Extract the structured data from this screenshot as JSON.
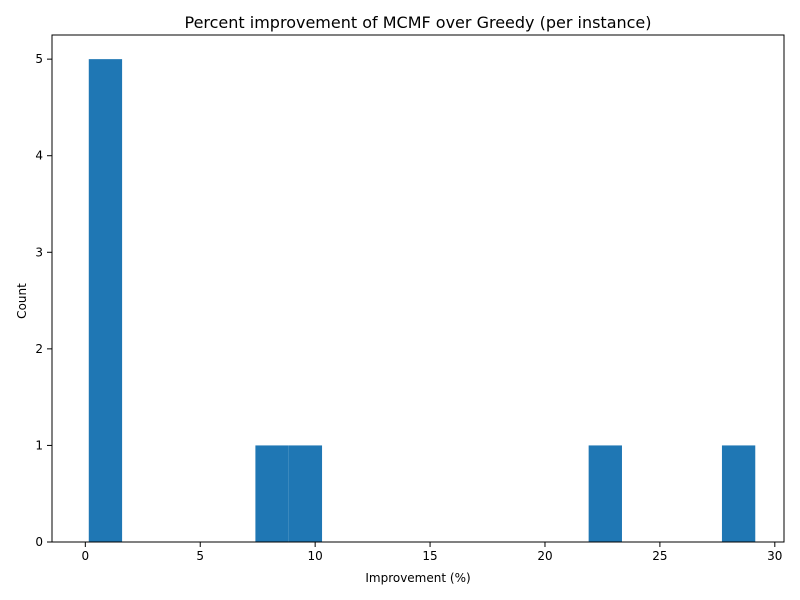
{
  "chart_data": {
    "type": "bar",
    "title": "Percent improvement of MCMF over Greedy (per instance)",
    "xlabel": "Improvement (%)",
    "ylabel": "Count",
    "xlim": [
      -1.45,
      30.4
    ],
    "ylim": [
      0,
      5.25
    ],
    "xticks": [
      0,
      5,
      10,
      15,
      20,
      25,
      30
    ],
    "yticks": [
      0,
      1,
      2,
      3,
      4,
      5
    ],
    "bar_color": "#1f77b4",
    "bins": [
      {
        "x0": 0.15,
        "x1": 1.6,
        "count": 5
      },
      {
        "x0": 7.4,
        "x1": 8.85,
        "count": 1
      },
      {
        "x0": 8.85,
        "x1": 10.3,
        "count": 1
      },
      {
        "x0": 21.9,
        "x1": 23.35,
        "count": 1
      },
      {
        "x0": 27.7,
        "x1": 29.15,
        "count": 1
      }
    ],
    "grid": false,
    "legend": "none"
  }
}
